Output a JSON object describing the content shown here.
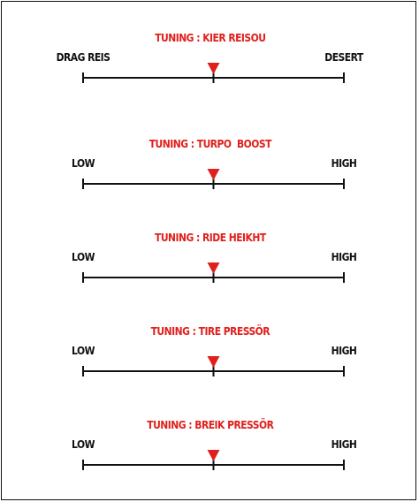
{
  "sliders": [
    {
      "title": "TUNING : KIER REISOU",
      "left_label": "DRAG REIS",
      "right_label": "DESERT",
      "value": 0.5
    },
    {
      "title": "TUNING : TURPO  BOOST",
      "left_label": "LOW",
      "right_label": "HIGH",
      "value": 0.5
    },
    {
      "title": "TUNING : RIDE HEIKHT",
      "left_label": "LOW",
      "right_label": "HIGH",
      "value": 0.5
    },
    {
      "title": "TUNING : TIRE PRESSÖR",
      "left_label": "LOW",
      "right_label": "HIGH",
      "value": 0.5
    },
    {
      "title": "TUNING : BREIK PRESSÖR",
      "left_label": "LOW",
      "right_label": "HIGH",
      "value": 0.5
    }
  ],
  "colors": {
    "title": "#e0201c",
    "marker": "#e0201c",
    "track": "#111111"
  },
  "icons": {
    "marker": "down-triangle-marker-icon"
  }
}
